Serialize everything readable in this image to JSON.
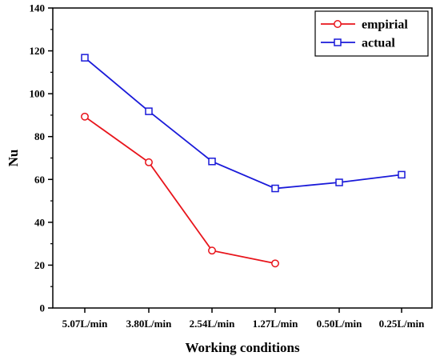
{
  "chart_data": {
    "type": "line",
    "xlabel": "Working conditions",
    "ylabel": "Nu",
    "categories": [
      "5.07L/min",
      "3.80L/min",
      "2.54L/min",
      "1.27L/min",
      "0.50L/min",
      "0.25L/min"
    ],
    "ylim": [
      0,
      140
    ],
    "yticks": [
      0,
      20,
      40,
      60,
      80,
      100,
      120,
      140
    ],
    "grid": false,
    "legend_position": "top-right",
    "series": [
      {
        "name": "empirial",
        "values": [
          89.3,
          68.0,
          26.8,
          20.8,
          null,
          null
        ],
        "color": "#e8141b",
        "marker": "circle"
      },
      {
        "name": "actual",
        "values": [
          116.8,
          91.8,
          68.4,
          55.8,
          58.6,
          62.2
        ],
        "color": "#1a1ad9",
        "marker": "square"
      }
    ]
  }
}
